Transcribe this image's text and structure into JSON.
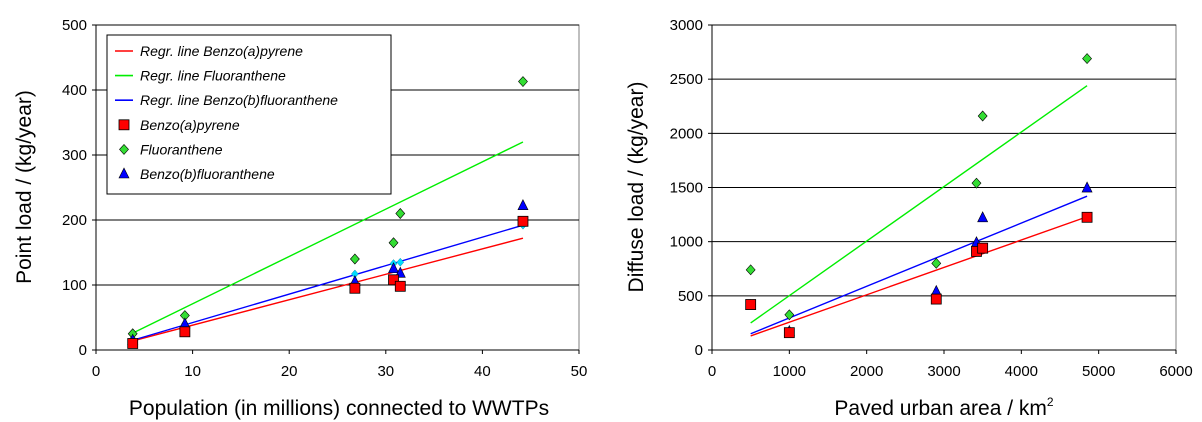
{
  "chart_data": [
    {
      "type": "scatter",
      "xlabel": "Population (in millions) connected to WWTPs",
      "ylabel": "Point load / (kg/year)",
      "xlim": [
        0,
        50
      ],
      "ylim": [
        0,
        500
      ],
      "xticks": [
        "0",
        "10",
        "20",
        "30",
        "40",
        "50"
      ],
      "yticks": [
        "0",
        "100",
        "200",
        "300",
        "400",
        "500"
      ],
      "grid": "horizontal",
      "legend_position": "top-left",
      "legend": [
        {
          "label": "Regr. line Benzo(a)pyrene",
          "kind": "line",
          "color": "#ff0000"
        },
        {
          "label": "Regr. line Fluoranthene",
          "kind": "line",
          "color": "#00ee00"
        },
        {
          "label": "Regr. line Benzo(b)fluoranthene",
          "kind": "line",
          "color": "#0000ff"
        },
        {
          "label": "Benzo(a)pyrene",
          "kind": "square",
          "color": "#ff0000"
        },
        {
          "label": "Fluoranthene",
          "kind": "diamond",
          "color": "#33dd33"
        },
        {
          "label": "Benzo(b)fluoranthene",
          "kind": "triangle",
          "color": "#0000ff"
        }
      ],
      "series": [
        {
          "name": "Benzo(a)pyrene",
          "marker": "square",
          "color": "#ff0000",
          "x": [
            3.8,
            9.2,
            26.8,
            30.8,
            31.5,
            44.2
          ],
          "y": [
            10,
            28,
            95,
            108,
            98,
            198
          ]
        },
        {
          "name": "Fluoranthene",
          "marker": "diamond",
          "color": "#33dd33",
          "x": [
            3.8,
            9.2,
            26.8,
            30.8,
            31.5,
            44.2
          ],
          "y": [
            25,
            53,
            140,
            165,
            210,
            413
          ]
        },
        {
          "name": "Benzo(b)fluoranthene",
          "marker": "triangle",
          "color": "#0000ff",
          "x": [
            3.8,
            9.2,
            26.8,
            30.8,
            31.5,
            44.2
          ],
          "y": [
            15,
            40,
            105,
            125,
            118,
            222
          ]
        },
        {
          "name": "Benzo(b)fluoranthene fitted",
          "marker": "smalldiamond",
          "color": "#00ddff",
          "x": [
            3.8,
            9.2,
            26.8,
            30.8,
            31.5,
            44.2
          ],
          "y": [
            17,
            40,
            117,
            133,
            135,
            192
          ]
        }
      ],
      "regression_lines": [
        {
          "name": "Regr. line Benzo(a)pyrene",
          "color": "#ff0000",
          "x": [
            3.8,
            44.2
          ],
          "y": [
            14,
            172
          ]
        },
        {
          "name": "Regr. line Fluoranthene",
          "color": "#00ee00",
          "x": [
            3.8,
            44.2
          ],
          "y": [
            26,
            320
          ]
        },
        {
          "name": "Regr. line Benzo(b)fluoranthene",
          "color": "#0000ff",
          "x": [
            3.8,
            44.2
          ],
          "y": [
            15,
            192
          ]
        }
      ]
    },
    {
      "type": "scatter",
      "xlabel": "Paved urban area / km",
      "xlabel_superscript": "2",
      "ylabel": "Diffuse load / (kg/year)",
      "xlim": [
        0,
        6000
      ],
      "ylim": [
        0,
        3000
      ],
      "xticks": [
        "0",
        "1000",
        "2000",
        "3000",
        "4000",
        "5000",
        "6000"
      ],
      "yticks": [
        "0",
        "500",
        "1000",
        "1500",
        "2000",
        "2500",
        "3000"
      ],
      "grid": "horizontal",
      "series": [
        {
          "name": "Benzo(a)pyrene",
          "marker": "square",
          "color": "#ff0000",
          "x": [
            500,
            1000,
            2900,
            3420,
            3500,
            4850
          ],
          "y": [
            420,
            160,
            470,
            910,
            940,
            1225
          ]
        },
        {
          "name": "Fluoranthene",
          "marker": "diamond",
          "color": "#33dd33",
          "x": [
            500,
            1000,
            2900,
            3420,
            3500,
            4850
          ],
          "y": [
            740,
            325,
            800,
            1540,
            2160,
            2690
          ]
        },
        {
          "name": "Benzo(b)fluoranthene",
          "marker": "triangle",
          "color": "#0000ff",
          "x": [
            500,
            1000,
            2900,
            3420,
            3500,
            4850
          ],
          "y": [
            410,
            170,
            540,
            990,
            1220,
            1495
          ]
        }
      ],
      "regression_lines": [
        {
          "name": "Regr. line Benzo(a)pyrene",
          "color": "#ff0000",
          "x": [
            500,
            4850
          ],
          "y": [
            130,
            1230
          ]
        },
        {
          "name": "Regr. line Fluoranthene",
          "color": "#00ee00",
          "x": [
            500,
            4850
          ],
          "y": [
            250,
            2440
          ]
        },
        {
          "name": "Regr. line Benzo(b)fluoranthene",
          "color": "#0000ff",
          "x": [
            500,
            4850
          ],
          "y": [
            150,
            1420
          ]
        }
      ]
    }
  ]
}
